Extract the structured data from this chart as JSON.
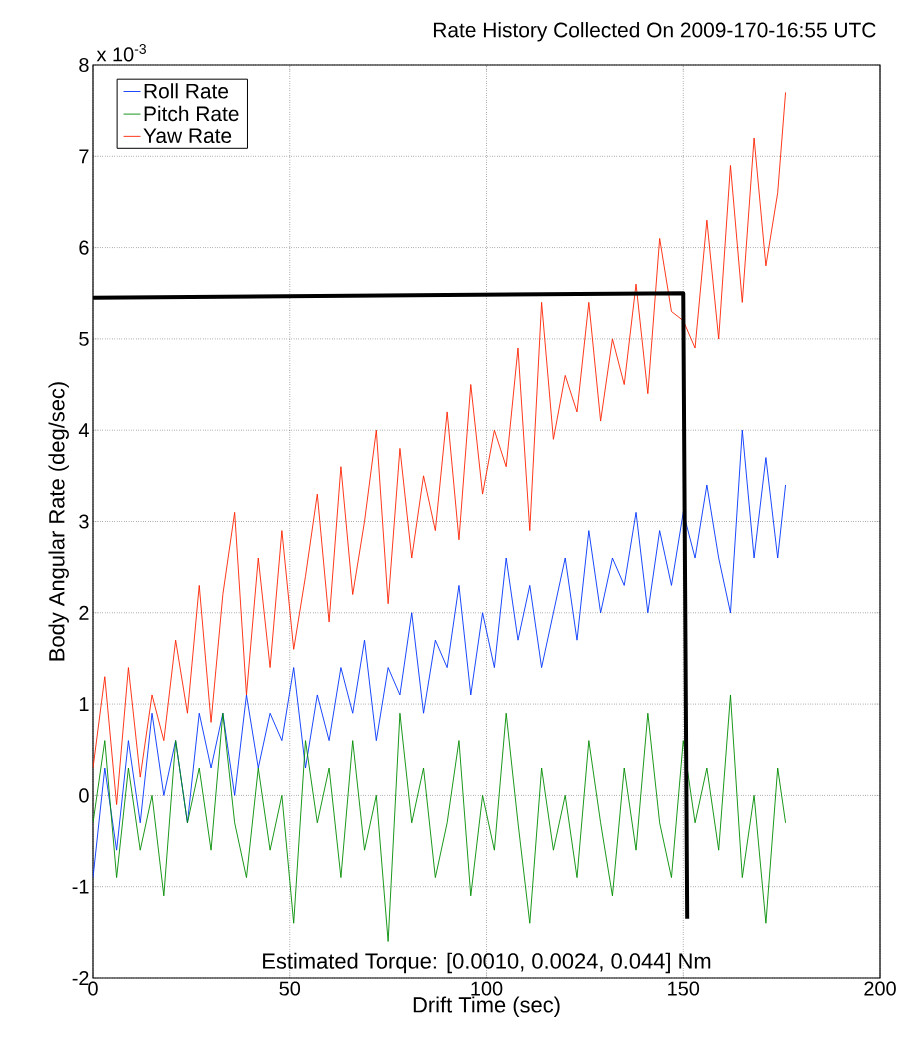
{
  "chart_data": {
    "type": "line",
    "title": "Rate History Collected On 2009-170-16:55 UTC",
    "xlabel": "Drift Time (sec)",
    "ylabel": "Body Angular Rate (deg/sec)",
    "annotations": [
      "x 10$^{-3}$",
      "Estimated Torque: [0.0010, 0.0024, 0.044] Nm"
    ],
    "x": [
      0,
      3,
      6,
      9,
      12,
      15,
      18,
      21,
      24,
      27,
      30,
      33,
      36,
      39,
      42,
      45,
      48,
      51,
      54,
      57,
      60,
      63,
      66,
      69,
      72,
      75,
      78,
      81,
      84,
      87,
      90,
      93,
      96,
      99,
      102,
      105,
      108,
      111,
      114,
      117,
      120,
      123,
      126,
      129,
      132,
      135,
      138,
      141,
      144,
      147,
      150,
      153,
      156,
      159,
      162,
      165,
      168,
      171,
      174,
      176
    ],
    "series": [
      {
        "name": "Roll Rate",
        "color": "#0033ff",
        "values": [
          -0.9,
          0.3,
          -0.6,
          0.6,
          -0.3,
          0.9,
          0.0,
          0.6,
          -0.3,
          0.9,
          0.3,
          0.9,
          0.0,
          1.1,
          0.3,
          0.9,
          0.6,
          1.4,
          0.3,
          1.1,
          0.6,
          1.4,
          0.9,
          1.7,
          0.6,
          1.4,
          1.1,
          2.0,
          0.9,
          1.7,
          1.4,
          2.3,
          1.1,
          2.0,
          1.4,
          2.6,
          1.7,
          2.3,
          1.4,
          2.0,
          2.6,
          1.7,
          2.9,
          2.0,
          2.6,
          2.3,
          3.1,
          2.0,
          2.9,
          2.3,
          3.1,
          2.6,
          3.4,
          2.6,
          2.0,
          4.0,
          2.6,
          3.7,
          2.6,
          3.4
        ]
      },
      {
        "name": "Pitch Rate",
        "color": "#008c00",
        "values": [
          -0.3,
          0.6,
          -0.9,
          0.3,
          -0.6,
          0.0,
          -1.1,
          0.6,
          -0.3,
          0.3,
          -0.6,
          0.9,
          -0.3,
          -0.9,
          0.3,
          -0.6,
          0.0,
          -1.4,
          0.6,
          -0.3,
          0.3,
          -0.9,
          0.6,
          -0.6,
          0.0,
          -1.6,
          0.9,
          -0.3,
          0.3,
          -0.9,
          -0.3,
          0.6,
          -1.1,
          0.0,
          -0.6,
          0.9,
          -0.3,
          -1.4,
          0.3,
          -0.6,
          0.0,
          -0.9,
          0.6,
          -0.3,
          -1.1,
          0.3,
          -0.6,
          0.9,
          -0.3,
          -0.9,
          0.6,
          -0.3,
          0.3,
          -0.6,
          1.1,
          -0.9,
          0.0,
          -1.4,
          0.3,
          -0.3
        ]
      },
      {
        "name": "Yaw Rate",
        "color": "#ff2200",
        "values": [
          0.3,
          1.3,
          -0.1,
          1.4,
          0.2,
          1.1,
          0.6,
          1.7,
          0.9,
          2.3,
          0.8,
          2.2,
          3.1,
          1.1,
          2.6,
          1.4,
          2.9,
          1.6,
          2.4,
          3.3,
          1.9,
          3.6,
          2.2,
          3.0,
          4.0,
          2.1,
          3.8,
          2.6,
          3.5,
          2.9,
          4.2,
          2.8,
          4.5,
          3.3,
          4.0,
          3.6,
          4.9,
          2.9,
          5.4,
          3.9,
          4.6,
          4.2,
          5.4,
          4.1,
          5.0,
          4.5,
          5.6,
          4.4,
          6.1,
          5.3,
          5.2,
          4.9,
          6.3,
          5.0,
          6.9,
          5.4,
          7.2,
          5.8,
          6.6,
          7.7
        ]
      },
      {
        "color": "#000000",
        "x": [
          0,
          150,
          151
        ],
        "values": [
          5.45,
          5.5,
          -1.35
        ]
      }
    ],
    "xlim": [
      0,
      200
    ],
    "ylim": [
      -2,
      8
    ],
    "xticks": [
      0,
      50,
      100,
      150,
      200
    ],
    "yticks": [
      -2,
      -1,
      0,
      1,
      2,
      3,
      4,
      5,
      6,
      7,
      8
    ],
    "grid": true,
    "legend": "top left",
    "marker": "none",
    "line_style": "solid"
  }
}
